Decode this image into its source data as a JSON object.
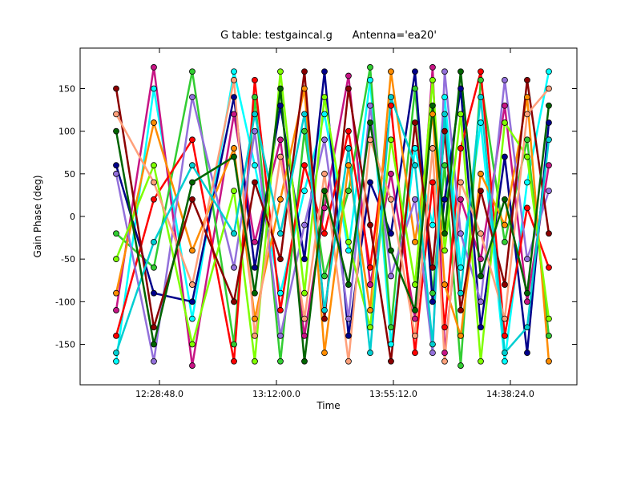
{
  "chart_data": {
    "type": "line",
    "title": "G table: testgaincal.g      Antenna='ea20'",
    "x_label": "Time",
    "y_label": "Gain Phase (deg)",
    "x": [
      43969,
      44803,
      45655,
      46579,
      47040,
      47608,
      48141,
      48585,
      49117,
      49597,
      50058,
      50591,
      50981,
      51248,
      51603,
      52047,
      52579,
      53076,
      53556
    ],
    "xlim": [
      43170,
      54178
    ],
    "xticks": [
      {
        "value": 44928,
        "label": "12:28:48.0"
      },
      {
        "value": 47520,
        "label": "13:12:00.0"
      },
      {
        "value": 50112,
        "label": "13:55:12.0"
      },
      {
        "value": 52704,
        "label": "14:38:24.0"
      }
    ],
    "ylim": [
      -197.5,
      197.5
    ],
    "yticks": [
      -150,
      -100,
      -50,
      0,
      50,
      100,
      150
    ],
    "series": [
      {
        "color": "#00ffff",
        "values": [
          -170,
          150,
          -120,
          170,
          60,
          -90,
          30,
          120,
          -40,
          160,
          -150,
          80,
          -10,
          140,
          -60,
          110,
          -170,
          40,
          170
        ]
      },
      {
        "color": "#c71585",
        "values": [
          -110,
          175,
          -175,
          120,
          -30,
          90,
          -140,
          10,
          165,
          -80,
          50,
          -120,
          175,
          -160,
          20,
          -50,
          130,
          -100,
          60
        ]
      },
      {
        "color": "#32cd32",
        "values": [
          -20,
          -60,
          170,
          -150,
          140,
          -170,
          100,
          -70,
          30,
          175,
          -130,
          150,
          -90,
          60,
          -175,
          160,
          -30,
          90,
          -140
        ]
      },
      {
        "color": "#00008b",
        "values": [
          60,
          -90,
          -100,
          140,
          -60,
          130,
          -50,
          170,
          -140,
          40,
          -20,
          170,
          -100,
          20,
          150,
          -130,
          70,
          -160,
          110
        ]
      },
      {
        "color": "#ff0000",
        "values": [
          -140,
          20,
          90,
          -170,
          160,
          -110,
          60,
          -20,
          100,
          -60,
          130,
          -160,
          40,
          -130,
          80,
          170,
          -140,
          10,
          -60
        ]
      },
      {
        "color": "#ff8c00",
        "values": [
          -90,
          110,
          -40,
          80,
          -120,
          20,
          150,
          -160,
          60,
          -110,
          170,
          -30,
          120,
          -80,
          -140,
          50,
          -10,
          140,
          -170
        ]
      },
      {
        "color": "#9370db",
        "values": [
          50,
          -170,
          140,
          -60,
          100,
          -140,
          -10,
          90,
          -120,
          130,
          -70,
          20,
          -160,
          170,
          -20,
          -100,
          160,
          -50,
          30
        ]
      },
      {
        "color": "#7fff00",
        "values": [
          -50,
          60,
          -150,
          30,
          -170,
          170,
          -90,
          140,
          -30,
          -130,
          90,
          -80,
          160,
          -40,
          120,
          -170,
          110,
          70,
          -120
        ]
      },
      {
        "color": "#8b0000",
        "values": [
          150,
          -130,
          20,
          -100,
          40,
          -50,
          170,
          -120,
          150,
          -10,
          -170,
          110,
          -60,
          100,
          -110,
          30,
          -80,
          160,
          -20
        ]
      },
      {
        "color": "#ffa07a",
        "values": [
          120,
          40,
          -80,
          160,
          -140,
          70,
          -120,
          50,
          -170,
          90,
          20,
          -140,
          80,
          -170,
          40,
          -20,
          -120,
          120,
          150
        ]
      },
      {
        "color": "#00ced1",
        "values": [
          -160,
          -30,
          60,
          -20,
          120,
          -20,
          120,
          -110,
          80,
          -160,
          140,
          60,
          -150,
          120,
          -90,
          140,
          -160,
          -130,
          90
        ]
      },
      {
        "color": "#006400",
        "values": [
          100,
          -150,
          40,
          70,
          -90,
          150,
          -170,
          30,
          -80,
          110,
          -40,
          -110,
          130,
          -20,
          170,
          -70,
          20,
          -90,
          130
        ]
      }
    ]
  }
}
